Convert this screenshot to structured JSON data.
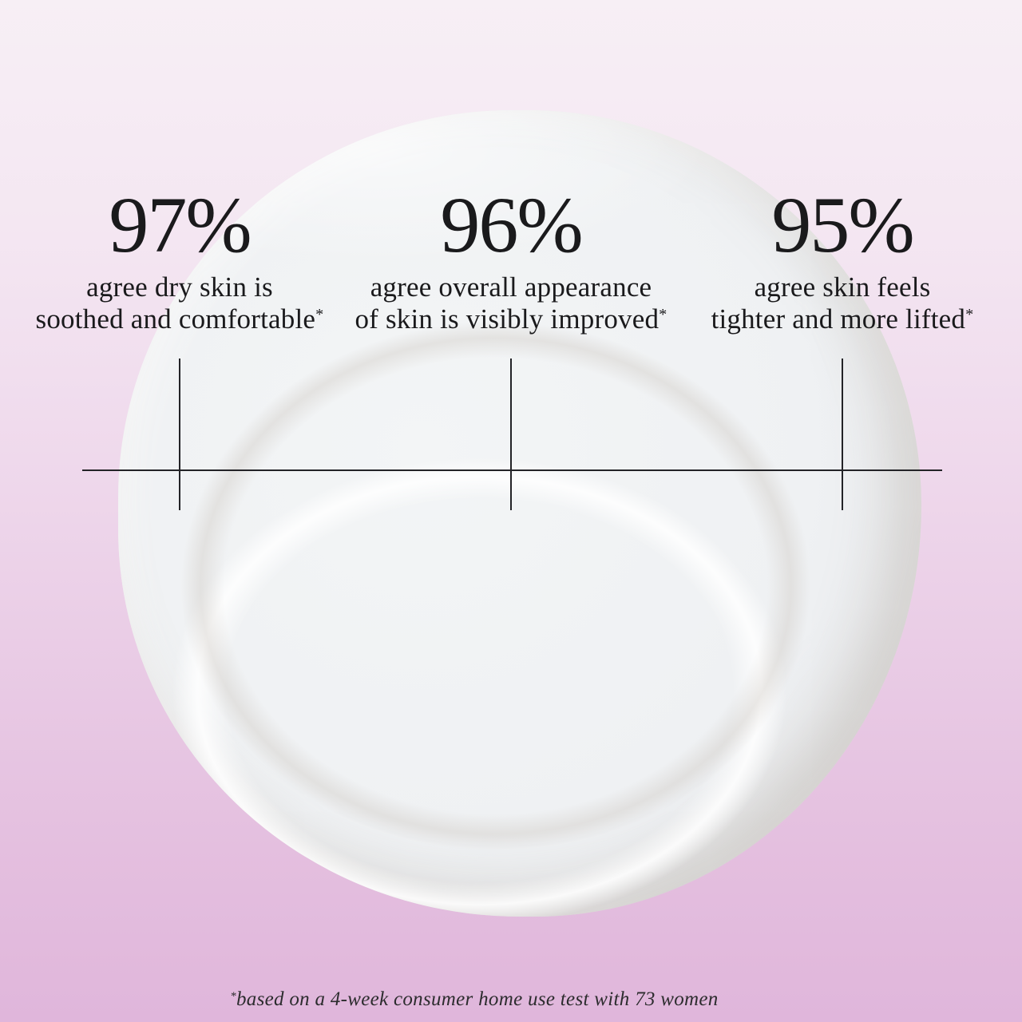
{
  "chart_data": {
    "type": "table",
    "title": "",
    "categories": [
      "agree dry skin is soothed and comfortable",
      "agree overall appearance of skin is visibly improved",
      "agree skin feels tighter and more lifted"
    ],
    "values": [
      97,
      96,
      95
    ],
    "unit": "%",
    "footnote": "*based on a 4-week consumer home use test with 73 women",
    "layout": "three stat columns above a horizontal rule with three tick marks, over a white cream swatch on a pink gradient"
  },
  "stats": [
    {
      "value": "97%",
      "line1": "agree dry skin is",
      "line2": "soothed and comfortable",
      "asterisk": "*"
    },
    {
      "value": "96%",
      "line1": "agree overall appearance",
      "line2": "of skin is visibly improved",
      "asterisk": "*"
    },
    {
      "value": "95%",
      "line1": "agree skin feels",
      "line2": "tighter and more lifted",
      "asterisk": "*"
    }
  ],
  "footnote": {
    "mark": "*",
    "text": "based on a 4-week consumer home use test with 73 women"
  },
  "colors": {
    "background_top": "#f7eff5",
    "background_bottom": "#e0b6db",
    "cream_blob": "#eff1f3",
    "blob_edge_shadow": "#d6d0c9",
    "rule_line": "#232327",
    "text": "#1a1a1c"
  }
}
